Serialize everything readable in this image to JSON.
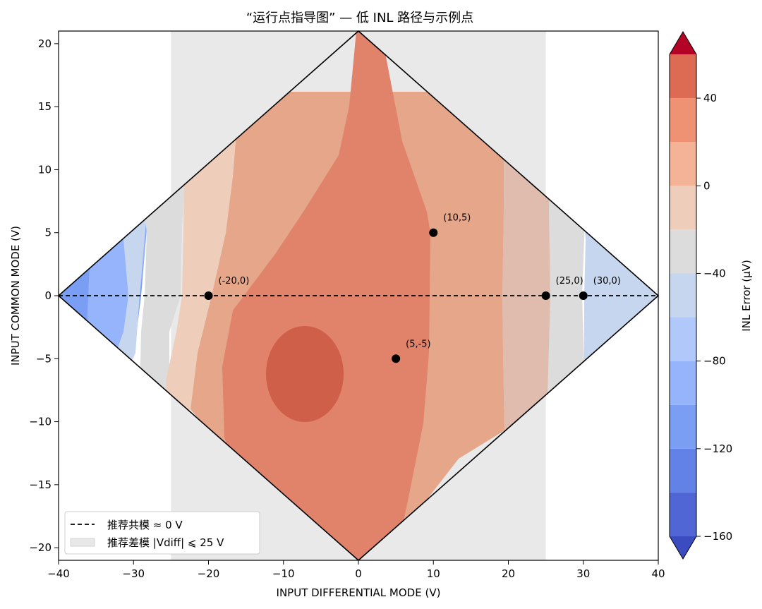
{
  "chart_data": {
    "type": "contour",
    "title": "“运行点指导图” — 低 INL 路径与示例点",
    "xlabel": "INPUT DIFFERENTIAL MODE (V)",
    "ylabel": "INPUT COMMON MODE (V)",
    "xlim": [
      -40,
      40
    ],
    "ylim": [
      -21,
      21
    ],
    "x_ticks": [
      -40,
      -30,
      -20,
      -10,
      0,
      10,
      20,
      30,
      40
    ],
    "x_tick_labels": [
      "−40",
      "−30",
      "−20",
      "−10",
      "0",
      "10",
      "20",
      "30",
      "40"
    ],
    "y_ticks": [
      -20,
      -15,
      -10,
      -5,
      0,
      5,
      10,
      15,
      20
    ],
    "y_tick_labels": [
      "−20",
      "−15",
      "−10",
      "−5",
      "0",
      "5",
      "10",
      "15",
      "20"
    ],
    "operating_region": {
      "shape": "diamond",
      "vertices": [
        [
          -40,
          0
        ],
        [
          0,
          21
        ],
        [
          40,
          0
        ],
        [
          0,
          -21
        ]
      ]
    },
    "recommended_common_mode": {
      "y": 0,
      "label": "推荐共模 ≈ 0 V"
    },
    "recommended_differential_band": {
      "x_range": [
        -25,
        25
      ],
      "label": "推荐差模 |Vdiff| ⩽ 25 V"
    },
    "points": [
      {
        "x": -20,
        "y": 0,
        "label": "(-20,0)"
      },
      {
        "x": 10,
        "y": 5,
        "label": "(10,5)"
      },
      {
        "x": 5,
        "y": -5,
        "label": "(5,-5)"
      },
      {
        "x": 25,
        "y": 0,
        "label": "(25,0)"
      },
      {
        "x": 30,
        "y": 0,
        "label": "(30,0)"
      }
    ],
    "colorbar": {
      "label": "INL Error (μV)",
      "levels": [
        -160,
        -140,
        -120,
        -100,
        -80,
        -60,
        -40,
        -20,
        0,
        20,
        40,
        60
      ],
      "colors": [
        "#4f66d4",
        "#6382e8",
        "#7b9ef5",
        "#96b4fb",
        "#b1c9fa",
        "#c7d6ef",
        "#dcdcdc",
        "#efcdbb",
        "#f4b296",
        "#ee9273",
        "#dd6a52",
        "#c53334"
      ],
      "under_color": "#3b4cc0",
      "over_color": "#b40426",
      "ticks": [
        40,
        0,
        -40,
        -80,
        -120,
        -160
      ],
      "tick_labels": [
        "40",
        "0",
        "−40",
        "−80",
        "−120",
        "−160"
      ]
    },
    "legend": {
      "location": "lower-left",
      "entries": [
        {
          "label": "推荐共模 ≈ 0 V",
          "style": "dashed-line"
        },
        {
          "label": "推荐差模 |Vdiff| ⩽ 25 V",
          "style": "gray-patch"
        }
      ]
    }
  }
}
